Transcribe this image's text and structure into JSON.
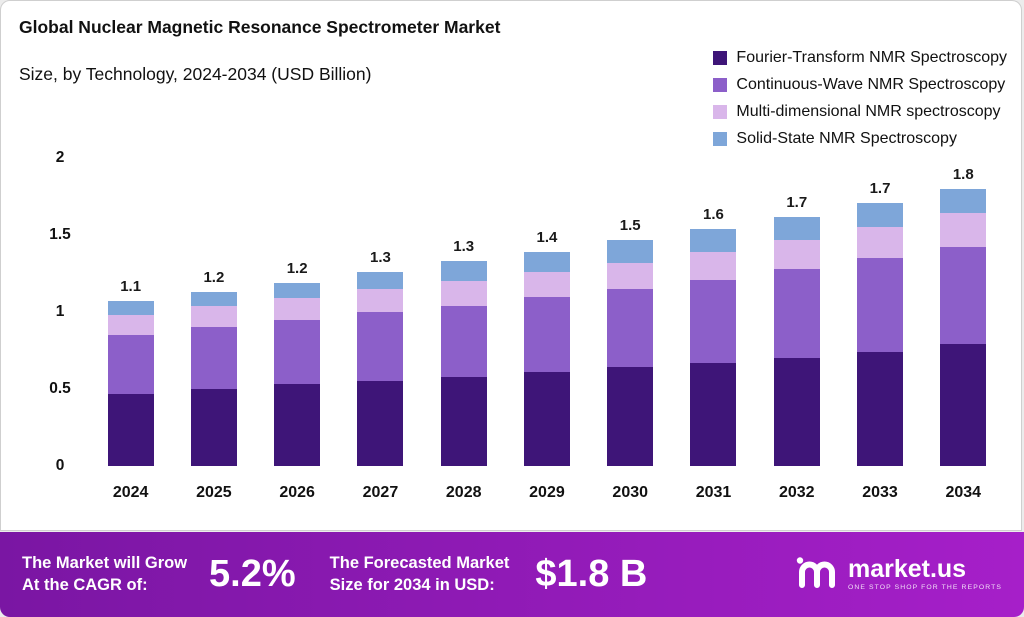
{
  "header": {
    "title": "Global Nuclear Magnetic Resonance Spectrometer Market",
    "subtitle": "Size, by Technology, 2024-2034 (USD Billion)"
  },
  "legend": [
    {
      "label": "Fourier-Transform NMR Spectroscopy",
      "color": "#3e1578"
    },
    {
      "label": "Continuous-Wave NMR Spectroscopy",
      "color": "#8c5fc9"
    },
    {
      "label": "Multi-dimensional NMR spectroscopy",
      "color": "#d9b6ea"
    },
    {
      "label": "Solid-State NMR Spectroscopy",
      "color": "#7ea6d9"
    }
  ],
  "chart_data": {
    "type": "bar",
    "stacked": true,
    "title": "Global Nuclear Magnetic Resonance Spectrometer Market Size, by Technology, 2024-2034 (USD Billion)",
    "xlabel": "",
    "ylabel": "USD Billion",
    "ylim": [
      0,
      2
    ],
    "yticks": [
      "0",
      "0.5",
      "1",
      "1.5",
      "2"
    ],
    "ytick_values": [
      0,
      0.5,
      1,
      1.5,
      2
    ],
    "grid": false,
    "legend_position": "top-right",
    "categories": [
      "2024",
      "2025",
      "2026",
      "2027",
      "2028",
      "2029",
      "2030",
      "2031",
      "2032",
      "2033",
      "2034"
    ],
    "totals": [
      "1.1",
      "1.2",
      "1.2",
      "1.3",
      "1.3",
      "1.4",
      "1.5",
      "1.6",
      "1.7",
      "1.7",
      "1.8"
    ],
    "series": [
      {
        "name": "Fourier-Transform NMR Spectroscopy",
        "color": "#3e1578",
        "values": [
          0.47,
          0.5,
          0.53,
          0.55,
          0.58,
          0.61,
          0.64,
          0.67,
          0.7,
          0.74,
          0.79
        ]
      },
      {
        "name": "Continuous-Wave NMR Spectroscopy",
        "color": "#8c5fc9",
        "values": [
          0.38,
          0.4,
          0.42,
          0.45,
          0.46,
          0.49,
          0.51,
          0.54,
          0.58,
          0.61,
          0.63
        ]
      },
      {
        "name": "Multi-dimensional NMR spectroscopy",
        "color": "#d9b6ea",
        "values": [
          0.13,
          0.14,
          0.14,
          0.15,
          0.16,
          0.16,
          0.17,
          0.18,
          0.19,
          0.2,
          0.22
        ]
      },
      {
        "name": "Solid-State NMR Spectroscopy",
        "color": "#7ea6d9",
        "values": [
          0.09,
          0.09,
          0.1,
          0.11,
          0.13,
          0.13,
          0.15,
          0.15,
          0.15,
          0.16,
          0.16
        ]
      }
    ]
  },
  "banner": {
    "growth_label_line1": "The Market will Grow",
    "growth_label_line2": "At the CAGR of:",
    "cagr_value": "5.2%",
    "forecast_label_line1": "The Forecasted Market",
    "forecast_label_line2": "Size for 2034 in USD:",
    "forecast_value": "$1.8 B",
    "logo_text": "market.us",
    "logo_tagline": "ONE STOP SHOP FOR THE REPORTS"
  },
  "colors": {
    "banner_left": "#7a16a3",
    "banner_right": "#a61fc9",
    "card_background": "#ffffff",
    "text": "#111111"
  }
}
